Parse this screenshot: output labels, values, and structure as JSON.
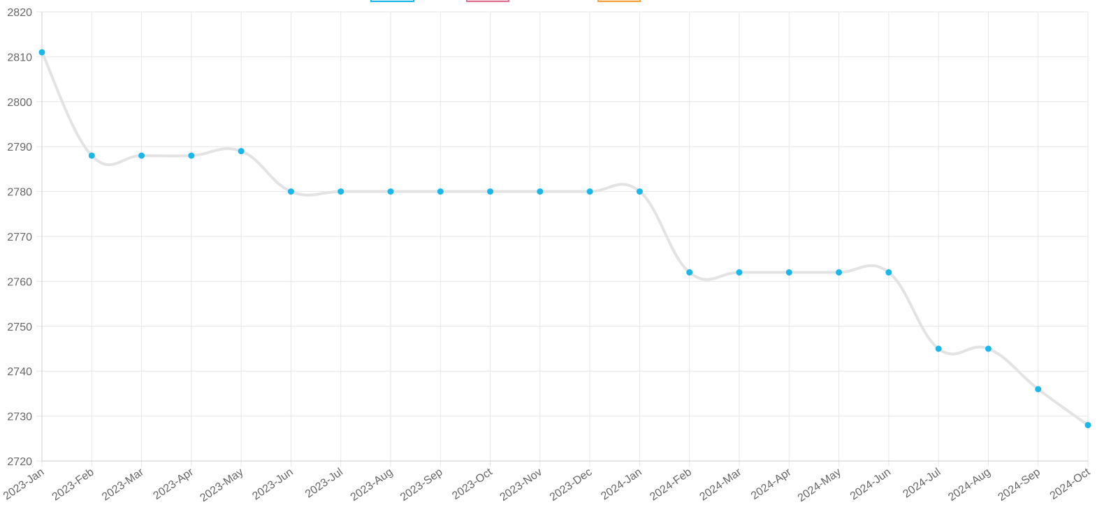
{
  "chart_data": {
    "type": "line",
    "categories": [
      "2023-Jan",
      "2023-Feb",
      "2023-Mar",
      "2023-Apr",
      "2023-May",
      "2023-Jun",
      "2023-Jul",
      "2023-Aug",
      "2023-Sep",
      "2023-Oct",
      "2023-Nov",
      "2023-Dec",
      "2024-Jan",
      "2024-Feb",
      "2024-Mar",
      "2024-Apr",
      "2024-May",
      "2024-Jun",
      "2024-Jul",
      "2024-Aug",
      "2024-Sep",
      "2024-Oct"
    ],
    "series": [
      {
        "color": "#1ab7ea",
        "line_color": "#e3e3e3",
        "values": [
          2811,
          2788,
          2788,
          2788,
          2789,
          2780,
          2780,
          2780,
          2780,
          2780,
          2780,
          2780,
          2780,
          2762,
          2762,
          2762,
          2762,
          2762,
          2745,
          2745,
          2736,
          2728
        ]
      }
    ],
    "ylim": [
      2720,
      2820
    ],
    "yticks": [
      2720,
      2730,
      2740,
      2750,
      2760,
      2770,
      2780,
      2790,
      2800,
      2810,
      2820
    ],
    "grid": true
  }
}
